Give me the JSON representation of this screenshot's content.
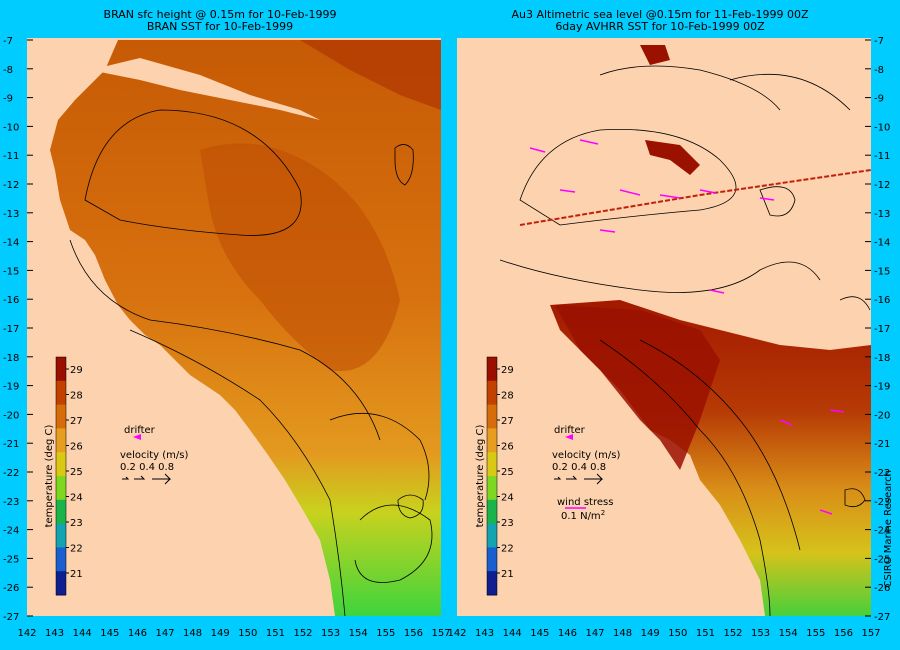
{
  "panels": {
    "left": {
      "title_line1": "BRAN sfc height @ 0.15m  for 10-Feb-1999",
      "title_line2": "BRAN SST for 10-Feb-1999"
    },
    "right": {
      "title_line1": "Au3 Altimetric sea level  @0.15m  for 11-Feb-1999 00Z",
      "title_line2": "6day AVHRR SST for 10-Feb-1999 00Z"
    }
  },
  "axes": {
    "lat_ticks": [
      "-7",
      "-8",
      "-9",
      "-10",
      "-11",
      "-12",
      "-13",
      "-14",
      "-15",
      "-16",
      "-17",
      "-18",
      "-19",
      "-20",
      "-21",
      "-22",
      "-23",
      "-24",
      "-25",
      "-26",
      "-27"
    ],
    "lon_ticks_left": [
      "142",
      "143",
      "144",
      "145",
      "146",
      "147",
      "148",
      "149",
      "150",
      "151",
      "152",
      "153",
      "154",
      "155",
      "156",
      "157"
    ],
    "lon_ticks_right": [
      "142",
      "143",
      "144",
      "145",
      "146",
      "147",
      "148",
      "149",
      "150",
      "151",
      "152",
      "153",
      "154",
      "155",
      "156",
      "157"
    ]
  },
  "colorbar": {
    "label": "temperature (deg C)",
    "ticks": [
      "29",
      "28",
      "27",
      "26",
      "25",
      "24",
      "23",
      "22",
      "21"
    ],
    "colors": [
      "#9a0f00",
      "#c24000",
      "#d76d0a",
      "#e79e20",
      "#d9c814",
      "#7ed821",
      "#1ab54a",
      "#14a3b0",
      "#1a5fd0",
      "#101f8f"
    ]
  },
  "legend": {
    "drifter_label": "drifter",
    "velocity_label": "velocity (m/s)",
    "velocity_values": "0.2 0.4 0.8",
    "wind_label": "wind stress",
    "wind_value": "0.1 N/m",
    "wind_exponent": "2"
  },
  "credit": "CSIRO Marine Research",
  "colors": {
    "background": "#00CCFF",
    "land": "#FDD2AE",
    "ocean_warm": "#d7710f",
    "ocean_hot": "#b43a02",
    "drifter": "#FF00FF",
    "vector": "#FF00FF"
  }
}
